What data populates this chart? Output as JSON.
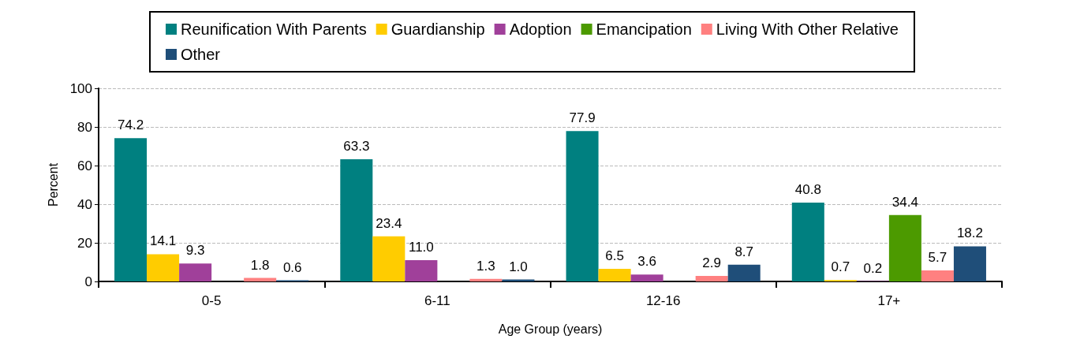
{
  "chart_data": {
    "type": "bar",
    "xlabel": "Age Group (years)",
    "ylabel": "Percent",
    "categories": [
      "0-5",
      "6-11",
      "12-16",
      "17+"
    ],
    "series": [
      {
        "name": "Reunification With Parents",
        "color": "#008080",
        "values": [
          74.2,
          63.3,
          77.9,
          40.8
        ],
        "value_labels": [
          "74.2",
          "63.3",
          "77.9",
          "40.8"
        ]
      },
      {
        "name": "Guardianship",
        "color": "#ffcc00",
        "values": [
          14.1,
          23.4,
          6.5,
          0.7
        ],
        "value_labels": [
          "14.1",
          "23.4",
          "6.5",
          "0.7"
        ]
      },
      {
        "name": "Adoption",
        "color": "#a0409a",
        "values": [
          9.3,
          11.0,
          3.6,
          0.2
        ],
        "value_labels": [
          "9.3",
          "11.0",
          "3.6",
          "0.2"
        ]
      },
      {
        "name": "Emancipation",
        "color": "#4c9a00",
        "values": [
          null,
          null,
          null,
          34.4
        ],
        "value_labels": [
          null,
          null,
          null,
          "34.4"
        ]
      },
      {
        "name": "Living With Other Relative",
        "color": "#ff8080",
        "values": [
          1.8,
          1.3,
          2.9,
          5.7
        ],
        "value_labels": [
          "1.8",
          "1.3",
          "2.9",
          "5.7"
        ]
      },
      {
        "name": "Other",
        "color": "#1f4e79",
        "values": [
          0.6,
          1.0,
          8.7,
          18.2
        ],
        "value_labels": [
          "0.6",
          "1.0",
          "8.7",
          "18.2"
        ]
      }
    ],
    "ylim": [
      0,
      100
    ],
    "yticks": [
      0,
      20,
      40,
      60,
      80,
      100
    ],
    "grid": "y",
    "legend": "top"
  }
}
